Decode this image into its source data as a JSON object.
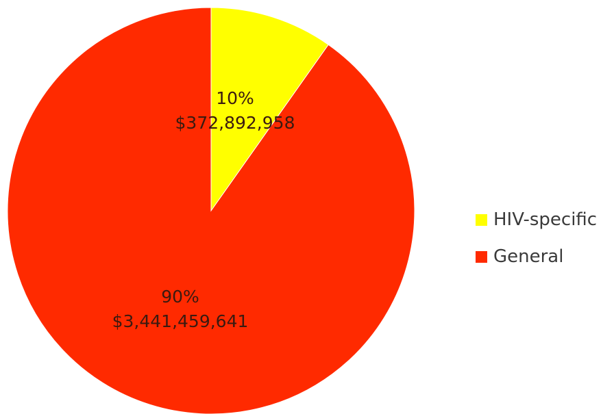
{
  "chart_data": {
    "type": "pie",
    "title": "",
    "slices": [
      {
        "name": "HIV-specific",
        "value": 372892958,
        "percent_label": "10%",
        "value_label": "$372,892,958",
        "color": "#ffff00"
      },
      {
        "name": "General",
        "value": 3441459641,
        "percent_label": "90%",
        "value_label": "$3,441,459,641",
        "color": "#ff2a00"
      }
    ],
    "start_angle_deg": 0,
    "direction": "clockwise",
    "legend_position": "right"
  }
}
